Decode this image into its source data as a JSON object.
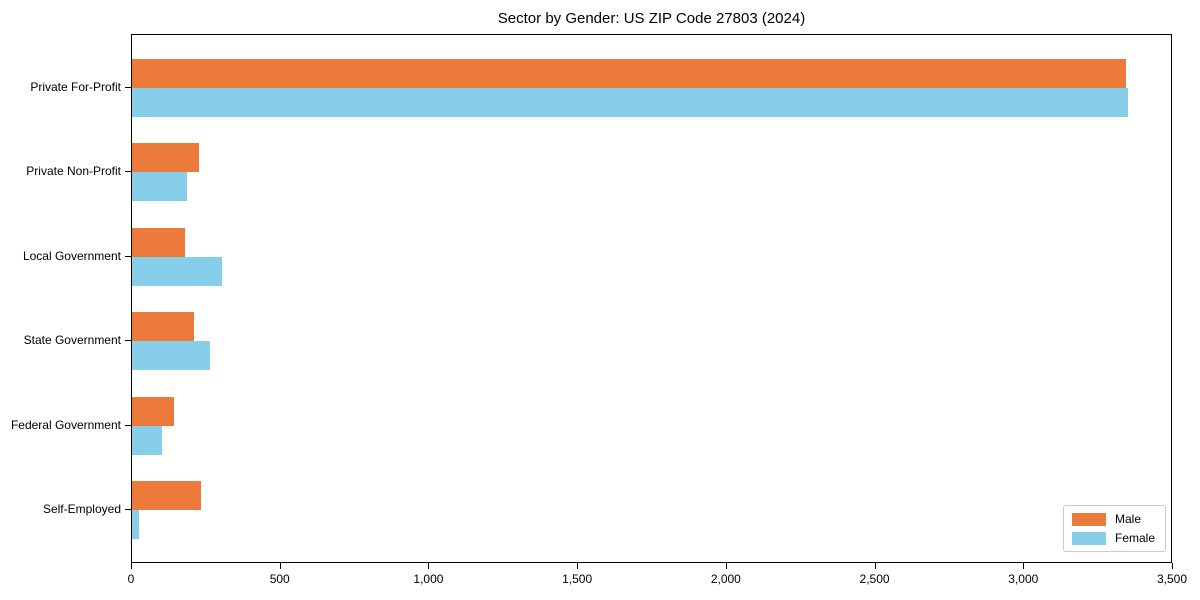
{
  "chart_data": {
    "type": "bar",
    "orientation": "horizontal",
    "title": "Sector by Gender: US ZIP Code 27803 (2024)",
    "categories": [
      "Private For-Profit",
      "Private Non-Profit",
      "Local Government",
      "State Government",
      "Federal Government",
      "Self-Employed"
    ],
    "series": [
      {
        "name": "Male",
        "color": "#ec7a3a",
        "values": [
          3350,
          225,
          180,
          210,
          142,
          232
        ]
      },
      {
        "name": "Female",
        "color": "#87ceeb",
        "values": [
          3355,
          185,
          303,
          263,
          100,
          25
        ]
      }
    ],
    "xlim": [
      0,
      3500
    ],
    "x_ticks": [
      0,
      500,
      1000,
      1500,
      2000,
      2500,
      3000,
      3500
    ],
    "x_tick_labels": [
      "0",
      "500",
      "1,000",
      "1,500",
      "2,000",
      "2,500",
      "3,000",
      "3,500"
    ],
    "legend_position": "lower right",
    "grid": false,
    "background_color": "#ffffff",
    "axis_color": "#000000"
  }
}
